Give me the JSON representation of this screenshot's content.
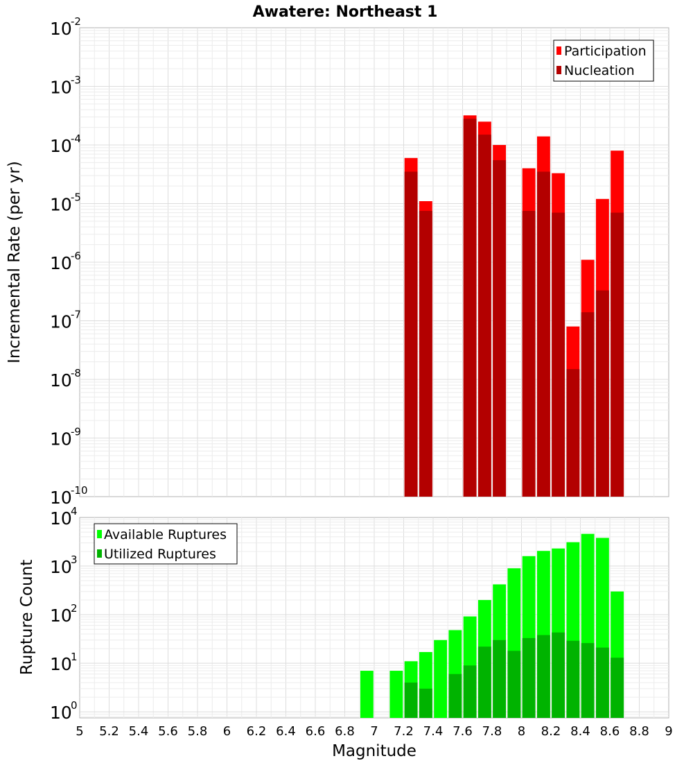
{
  "chart_data": [
    {
      "type": "bar",
      "title": "Awatere: Northeast 1",
      "xlabel": "Magnitude",
      "ylabel": "Incremental Rate (per yr)",
      "yscale": "log",
      "ylim": [
        1e-10,
        0.01
      ],
      "xlim": [
        5,
        9
      ],
      "grid": true,
      "legend_position": "top-right",
      "overlay": true,
      "x": [
        7.25,
        7.35,
        7.65,
        7.75,
        7.85,
        8.05,
        8.15,
        8.25,
        8.35,
        8.45,
        8.55,
        8.65
      ],
      "series": [
        {
          "name": "Participation",
          "color": "#ff0000",
          "values": [
            6e-05,
            1.1e-05,
            0.00032,
            0.00025,
            0.0001,
            4e-05,
            0.00014,
            3.3e-05,
            8e-08,
            1.1e-06,
            1.2e-05,
            8e-05
          ]
        },
        {
          "name": "Nucleation",
          "color": "#b30000",
          "values": [
            3.5e-05,
            7.5e-06,
            0.00028,
            0.00015,
            5.5e-05,
            7.5e-06,
            3.5e-05,
            7e-06,
            1.5e-08,
            1.4e-07,
            3.3e-07,
            7e-06
          ]
        }
      ],
      "ytick_labels": [
        {
          "base": "10",
          "exp": "-10"
        },
        {
          "base": "10",
          "exp": "-9"
        },
        {
          "base": "10",
          "exp": "-8"
        },
        {
          "base": "10",
          "exp": "-7"
        },
        {
          "base": "10",
          "exp": "-6"
        },
        {
          "base": "10",
          "exp": "-5"
        },
        {
          "base": "10",
          "exp": "-4"
        },
        {
          "base": "10",
          "exp": "-3"
        },
        {
          "base": "10",
          "exp": "-2"
        }
      ]
    },
    {
      "type": "bar",
      "xlabel": "Magnitude",
      "ylabel": "Rupture Count",
      "yscale": "log",
      "ylim": [
        0.75,
        10000
      ],
      "xlim": [
        5,
        9
      ],
      "grid": true,
      "legend_position": "top-left",
      "overlay": true,
      "x": [
        6.95,
        7.15,
        7.25,
        7.35,
        7.45,
        7.55,
        7.65,
        7.75,
        7.85,
        7.95,
        8.05,
        8.15,
        8.25,
        8.35,
        8.45,
        8.55,
        8.65
      ],
      "series": [
        {
          "name": "Available Ruptures",
          "color": "#00ff00",
          "values": [
            7,
            7,
            11,
            17,
            30,
            48,
            92,
            200,
            420,
            900,
            1600,
            2050,
            2300,
            3100,
            4600,
            3800,
            300
          ]
        },
        {
          "name": "Utilized Ruptures",
          "color": "#00b300",
          "values": [
            null,
            null,
            4,
            3,
            null,
            6,
            9,
            22,
            30,
            18,
            33,
            38,
            43,
            29,
            26,
            21,
            13
          ]
        }
      ],
      "ytick_labels": [
        {
          "base": "10",
          "exp": "0"
        },
        {
          "base": "10",
          "exp": "1"
        },
        {
          "base": "10",
          "exp": "2"
        },
        {
          "base": "10",
          "exp": "3"
        },
        {
          "base": "10",
          "exp": "4"
        }
      ],
      "xtick_labels": [
        "5",
        "5.2",
        "5.4",
        "5.6",
        "5.8",
        "6",
        "6.2",
        "6.4",
        "6.6",
        "6.8",
        "7",
        "7.2",
        "7.4",
        "7.6",
        "7.8",
        "8",
        "8.2",
        "8.4",
        "8.6",
        "8.8",
        "9"
      ]
    }
  ]
}
